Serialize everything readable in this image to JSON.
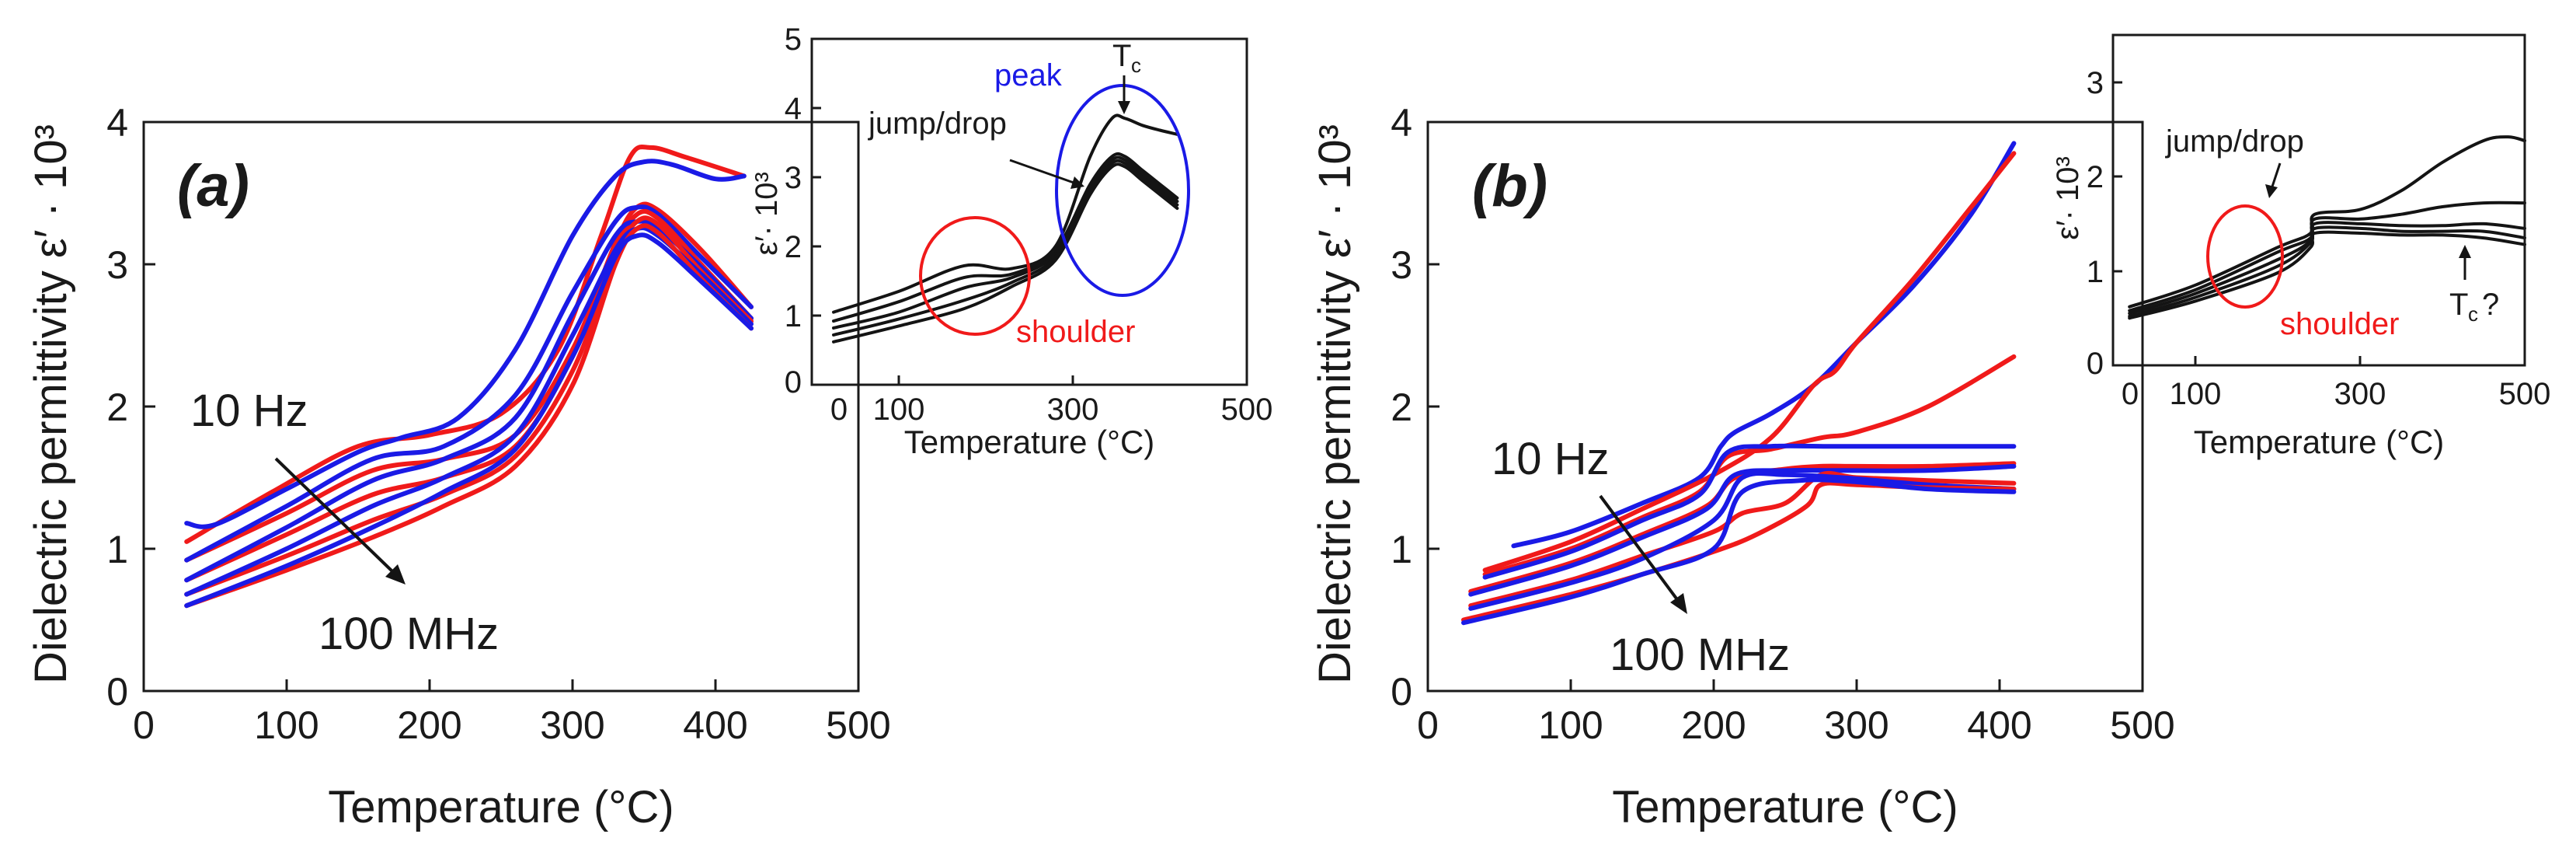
{
  "colors": {
    "red": "#f01a1a",
    "blue": "#1a1ae6",
    "black": "#141414"
  },
  "chart_data": [
    {
      "type": "line",
      "panel": "(a)",
      "xlabel": "Temperature (°C)",
      "ylabel": "Dielectric permittivity ε′ · 10³",
      "xlim": [
        0,
        500
      ],
      "ylim": [
        0,
        4
      ],
      "xticks": [
        "0",
        "100",
        "200",
        "300",
        "400",
        "500"
      ],
      "yticks": [
        "0",
        "1",
        "2",
        "3",
        "4"
      ],
      "freq_high_label": "10 Hz",
      "freq_low_label": "100 MHz",
      "series": [
        {
          "name": "red-1",
          "color": "red",
          "x": [
            30,
            90,
            150,
            200,
            250,
            290,
            320,
            340,
            355,
            380,
            420
          ],
          "y": [
            1.05,
            1.4,
            1.72,
            1.8,
            1.95,
            2.4,
            3.2,
            3.75,
            3.82,
            3.75,
            3.62
          ]
        },
        {
          "name": "blue-1",
          "color": "blue",
          "x": [
            30,
            50,
            100,
            150,
            180,
            220,
            260,
            300,
            330,
            350,
            370,
            400,
            420
          ],
          "y": [
            1.18,
            1.17,
            1.42,
            1.68,
            1.78,
            1.92,
            2.4,
            3.2,
            3.62,
            3.72,
            3.7,
            3.6,
            3.62
          ]
        },
        {
          "name": "red-2",
          "color": "red",
          "x": [
            30,
            100,
            160,
            210,
            260,
            300,
            330,
            345,
            360,
            390,
            425
          ],
          "y": [
            0.92,
            1.25,
            1.55,
            1.63,
            1.8,
            2.4,
            3.15,
            3.4,
            3.38,
            3.1,
            2.7
          ]
        },
        {
          "name": "blue-2",
          "color": "blue",
          "x": [
            30,
            100,
            160,
            210,
            260,
            300,
            330,
            345,
            360,
            390,
            425
          ],
          "y": [
            0.92,
            1.3,
            1.63,
            1.72,
            2.08,
            2.8,
            3.3,
            3.4,
            3.35,
            3.05,
            2.7
          ]
        },
        {
          "name": "red-3",
          "color": "red",
          "x": [
            30,
            100,
            160,
            210,
            260,
            300,
            330,
            345,
            360,
            390,
            425
          ],
          "y": [
            0.78,
            1.1,
            1.38,
            1.5,
            1.72,
            2.35,
            3.1,
            3.35,
            3.32,
            3.0,
            2.62
          ]
        },
        {
          "name": "blue-3",
          "color": "blue",
          "x": [
            30,
            100,
            160,
            210,
            260,
            300,
            330,
            345,
            360,
            390,
            425
          ],
          "y": [
            0.78,
            1.15,
            1.48,
            1.63,
            1.92,
            2.65,
            3.2,
            3.3,
            3.25,
            2.98,
            2.62
          ]
        },
        {
          "name": "red-4",
          "color": "red",
          "x": [
            30,
            100,
            160,
            210,
            260,
            300,
            330,
            345,
            360,
            390,
            425
          ],
          "y": [
            0.68,
            0.95,
            1.2,
            1.38,
            1.65,
            2.25,
            3.05,
            3.3,
            3.28,
            2.95,
            2.6
          ]
        },
        {
          "name": "blue-4",
          "color": "blue",
          "x": [
            30,
            100,
            160,
            210,
            260,
            300,
            330,
            345,
            360,
            390,
            425
          ],
          "y": [
            0.68,
            1.0,
            1.3,
            1.5,
            1.8,
            2.5,
            3.1,
            3.25,
            3.2,
            2.93,
            2.58
          ]
        },
        {
          "name": "red-5",
          "color": "red",
          "x": [
            30,
            100,
            160,
            210,
            260,
            300,
            330,
            345,
            360,
            390,
            425
          ],
          "y": [
            0.6,
            0.85,
            1.08,
            1.3,
            1.58,
            2.15,
            3.0,
            3.25,
            3.22,
            2.9,
            2.55
          ]
        },
        {
          "name": "blue-5",
          "color": "blue",
          "x": [
            30,
            100,
            160,
            210,
            260,
            300,
            330,
            345,
            360,
            390,
            425
          ],
          "y": [
            0.6,
            0.88,
            1.15,
            1.4,
            1.7,
            2.35,
            3.05,
            3.2,
            3.15,
            2.88,
            2.55
          ]
        }
      ]
    },
    {
      "type": "line",
      "panel": "(a) inset",
      "xlabel": "Temperature (°C)",
      "ylabel": "ε′· 10³",
      "xlim": [
        0,
        500
      ],
      "ylim": [
        0,
        5
      ],
      "xticks": [
        "0",
        "100",
        "300",
        "500"
      ],
      "yticks": [
        "0",
        "1",
        "2",
        "3",
        "4",
        "5"
      ],
      "annotations": [
        "peak",
        "T",
        "c",
        "jump/drop",
        "shoulder"
      ],
      "series": [
        {
          "name": "k-1",
          "color": "black",
          "x": [
            25,
            100,
            175,
            230,
            280,
            320,
            345,
            360,
            380,
            400,
            420
          ],
          "y": [
            1.05,
            1.35,
            1.72,
            1.68,
            2.0,
            3.3,
            3.85,
            3.85,
            3.75,
            3.68,
            3.62
          ]
        },
        {
          "name": "k-2",
          "color": "black",
          "x": [
            25,
            100,
            175,
            230,
            280,
            320,
            345,
            360,
            380,
            400,
            420
          ],
          "y": [
            0.92,
            1.2,
            1.55,
            1.6,
            1.95,
            2.9,
            3.3,
            3.3,
            3.1,
            2.9,
            2.7
          ]
        },
        {
          "name": "k-3",
          "color": "black",
          "x": [
            25,
            100,
            175,
            230,
            280,
            320,
            345,
            360,
            380,
            400,
            420
          ],
          "y": [
            0.82,
            1.05,
            1.4,
            1.55,
            1.9,
            2.85,
            3.25,
            3.25,
            3.05,
            2.85,
            2.65
          ]
        },
        {
          "name": "k-4",
          "color": "black",
          "x": [
            25,
            100,
            175,
            230,
            280,
            320,
            345,
            360,
            380,
            400,
            420
          ],
          "y": [
            0.72,
            0.95,
            1.22,
            1.48,
            1.85,
            2.8,
            3.2,
            3.2,
            3.0,
            2.8,
            2.6
          ]
        },
        {
          "name": "k-5",
          "color": "black",
          "x": [
            25,
            100,
            175,
            230,
            280,
            320,
            345,
            360,
            380,
            400,
            420
          ],
          "y": [
            0.62,
            0.85,
            1.1,
            1.42,
            1.8,
            2.75,
            3.15,
            3.15,
            2.95,
            2.75,
            2.55
          ]
        }
      ]
    },
    {
      "type": "line",
      "panel": "(b)",
      "xlabel": "Temperature (°C)",
      "ylabel": "Dielectric permittivity ε′ · 10³",
      "xlim": [
        0,
        500
      ],
      "ylim": [
        0,
        4
      ],
      "xticks": [
        "0",
        "100",
        "200",
        "300",
        "400",
        "500"
      ],
      "yticks": [
        "0",
        "1",
        "2",
        "3",
        "4"
      ],
      "freq_high_label": "10 Hz",
      "freq_low_label": "100 MHz",
      "series": [
        {
          "name": "blue-1",
          "color": "blue",
          "x": [
            60,
            100,
            150,
            190,
            205,
            215,
            240,
            270,
            300,
            340,
            380,
            410
          ],
          "y": [
            1.02,
            1.12,
            1.32,
            1.5,
            1.72,
            1.82,
            1.95,
            2.15,
            2.45,
            2.85,
            3.35,
            3.85
          ]
        },
        {
          "name": "red-1",
          "color": "red",
          "x": [
            40,
            100,
            150,
            200,
            240,
            270,
            285,
            300,
            340,
            380,
            410
          ],
          "y": [
            0.85,
            1.05,
            1.28,
            1.52,
            1.78,
            2.15,
            2.25,
            2.45,
            2.9,
            3.4,
            3.78
          ]
        },
        {
          "name": "red-2",
          "color": "red",
          "x": [
            40,
            100,
            150,
            190,
            210,
            240,
            275,
            300,
            350,
            410
          ],
          "y": [
            0.82,
            1.0,
            1.22,
            1.4,
            1.65,
            1.7,
            1.78,
            1.82,
            2.0,
            2.35
          ]
        },
        {
          "name": "blue-2",
          "color": "blue",
          "x": [
            40,
            100,
            150,
            190,
            210,
            240,
            280,
            300,
            350,
            410
          ],
          "y": [
            0.8,
            0.98,
            1.2,
            1.38,
            1.68,
            1.72,
            1.72,
            1.72,
            1.72,
            1.72
          ]
        },
        {
          "name": "red-3",
          "color": "red",
          "x": [
            30,
            100,
            150,
            195,
            215,
            250,
            275,
            300,
            350,
            410
          ],
          "y": [
            0.7,
            0.9,
            1.1,
            1.3,
            1.5,
            1.56,
            1.58,
            1.58,
            1.58,
            1.6
          ]
        },
        {
          "name": "blue-3",
          "color": "blue",
          "x": [
            30,
            100,
            150,
            195,
            215,
            250,
            290,
            350,
            410
          ],
          "y": [
            0.68,
            0.88,
            1.08,
            1.28,
            1.52,
            1.55,
            1.55,
            1.55,
            1.58
          ]
        },
        {
          "name": "red-4",
          "color": "red",
          "x": [
            30,
            100,
            150,
            200,
            220,
            250,
            275,
            300,
            350,
            410
          ],
          "y": [
            0.6,
            0.78,
            0.95,
            1.12,
            1.25,
            1.32,
            1.52,
            1.5,
            1.48,
            1.46
          ]
        },
        {
          "name": "blue-4",
          "color": "blue",
          "x": [
            30,
            100,
            150,
            200,
            220,
            250,
            290,
            350,
            410
          ],
          "y": [
            0.58,
            0.76,
            0.93,
            1.2,
            1.5,
            1.52,
            1.5,
            1.45,
            1.42
          ]
        },
        {
          "name": "red-5",
          "color": "red",
          "x": [
            25,
            100,
            150,
            200,
            230,
            265,
            275,
            300,
            350,
            410
          ],
          "y": [
            0.5,
            0.68,
            0.82,
            0.98,
            1.1,
            1.3,
            1.45,
            1.45,
            1.43,
            1.42
          ]
        },
        {
          "name": "blue-5",
          "color": "blue",
          "x": [
            25,
            100,
            150,
            200,
            220,
            260,
            300,
            350,
            410
          ],
          "y": [
            0.48,
            0.66,
            0.82,
            1.0,
            1.4,
            1.48,
            1.47,
            1.42,
            1.4
          ]
        }
      ]
    },
    {
      "type": "line",
      "panel": "(b) inset",
      "xlabel": "Temperature (°C)",
      "ylabel": "ε′· 10³",
      "xlim": [
        0,
        500
      ],
      "ylim": [
        0,
        3.5
      ],
      "xticks": [
        "0",
        "100",
        "300",
        "500"
      ],
      "yticks": [
        "0",
        "1",
        "2",
        "3"
      ],
      "annotations": [
        "jump/drop",
        "shoulder",
        "T",
        "c",
        "?"
      ],
      "series": [
        {
          "name": "k-1",
          "color": "black",
          "x": [
            20,
            100,
            200,
            240,
            245,
            300,
            350,
            400,
            450,
            480,
            500
          ],
          "y": [
            0.62,
            0.85,
            1.25,
            1.4,
            1.6,
            1.65,
            1.85,
            2.15,
            2.38,
            2.42,
            2.38
          ]
        },
        {
          "name": "k-2",
          "color": "black",
          "x": [
            20,
            100,
            200,
            240,
            245,
            300,
            350,
            400,
            450,
            500
          ],
          "y": [
            0.58,
            0.8,
            1.2,
            1.35,
            1.55,
            1.55,
            1.6,
            1.68,
            1.72,
            1.72
          ]
        },
        {
          "name": "k-3",
          "color": "black",
          "x": [
            20,
            100,
            200,
            240,
            245,
            300,
            350,
            400,
            450,
            500
          ],
          "y": [
            0.55,
            0.76,
            1.12,
            1.32,
            1.5,
            1.5,
            1.48,
            1.48,
            1.5,
            1.45
          ]
        },
        {
          "name": "k-4",
          "color": "black",
          "x": [
            20,
            100,
            200,
            240,
            245,
            300,
            350,
            400,
            450,
            500
          ],
          "y": [
            0.52,
            0.72,
            1.05,
            1.3,
            1.45,
            1.45,
            1.42,
            1.42,
            1.42,
            1.35
          ]
        },
        {
          "name": "k-5",
          "color": "black",
          "x": [
            20,
            100,
            200,
            240,
            245,
            300,
            350,
            400,
            450,
            500
          ],
          "y": [
            0.5,
            0.68,
            0.98,
            1.25,
            1.4,
            1.4,
            1.38,
            1.38,
            1.35,
            1.28
          ]
        }
      ]
    }
  ]
}
